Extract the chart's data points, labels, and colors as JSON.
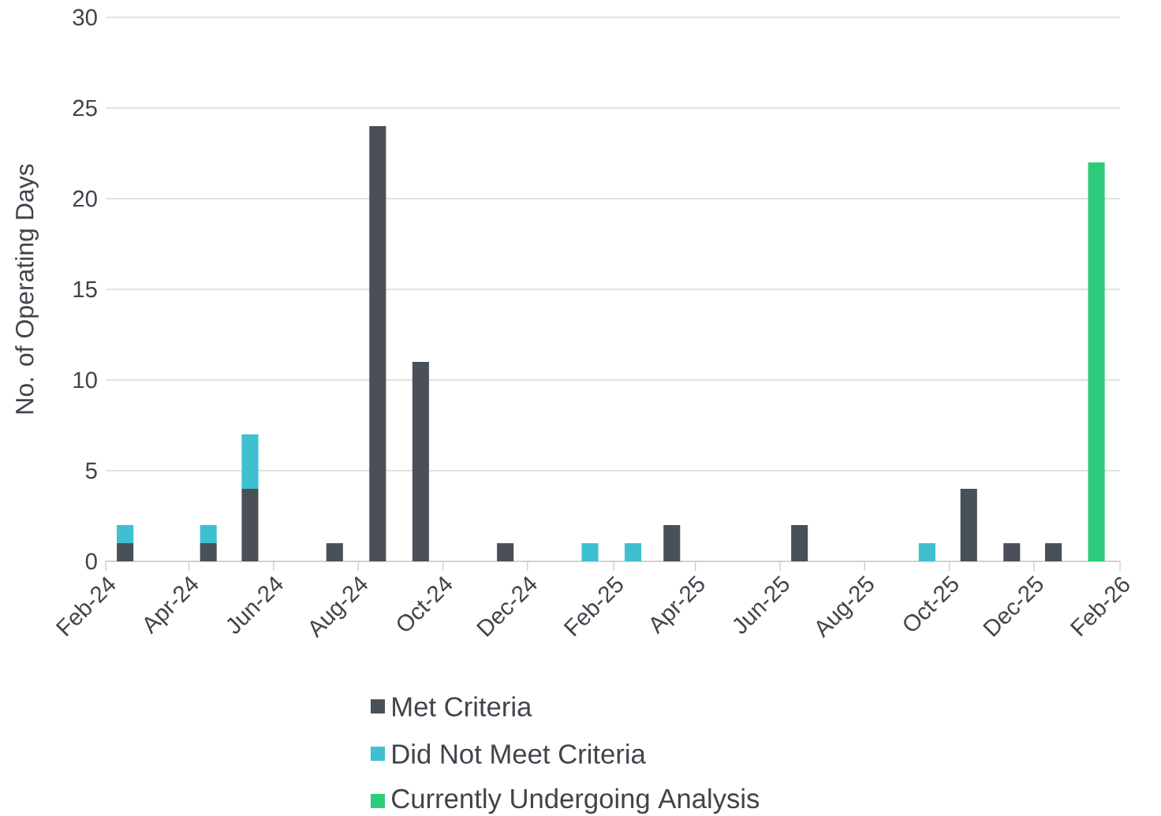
{
  "chart_data": {
    "type": "bar",
    "stacked": true,
    "ylabel": "No. of Operating Days",
    "x": [
      "2024-02-15",
      "2024-04-15",
      "2024-05-15",
      "2024-07-15",
      "2024-08-15",
      "2024-09-15",
      "2024-11-15",
      "2025-01-15",
      "2025-02-15",
      "2025-03-15",
      "2025-06-15",
      "2025-09-15",
      "2025-10-15",
      "2025-11-15",
      "2025-12-15",
      "2026-01-15"
    ],
    "series": [
      {
        "name": "Met Criteria",
        "color": "#4a5058",
        "values": [
          1,
          1,
          4,
          1,
          24,
          11,
          1,
          null,
          null,
          2,
          2,
          null,
          4,
          1,
          1,
          null
        ]
      },
      {
        "name": "Did Not Meet Criteria",
        "color": "#3ec0d0",
        "values": [
          1,
          1,
          3,
          null,
          null,
          null,
          null,
          1,
          1,
          null,
          null,
          1,
          null,
          null,
          null,
          null
        ]
      },
      {
        "name": "Currently Undergoing Analysis",
        "color": "#2ecc7a",
        "values": [
          null,
          null,
          null,
          null,
          null,
          null,
          null,
          null,
          null,
          null,
          null,
          null,
          null,
          null,
          null,
          22
        ]
      }
    ],
    "xlim": [
      "2024-02-01",
      "2026-02-01"
    ],
    "xticks": [
      {
        "value": "2024-02-01",
        "label": "Feb-24"
      },
      {
        "value": "2024-04-01",
        "label": "Apr-24"
      },
      {
        "value": "2024-06-01",
        "label": "Jun-24"
      },
      {
        "value": "2024-08-01",
        "label": "Aug-24"
      },
      {
        "value": "2024-10-01",
        "label": "Oct-24"
      },
      {
        "value": "2024-12-01",
        "label": "Dec-24"
      },
      {
        "value": "2025-02-01",
        "label": "Feb-25"
      },
      {
        "value": "2025-04-01",
        "label": "Apr-25"
      },
      {
        "value": "2025-06-01",
        "label": "Jun-25"
      },
      {
        "value": "2025-08-01",
        "label": "Aug-25"
      },
      {
        "value": "2025-10-01",
        "label": "Oct-25"
      },
      {
        "value": "2025-12-01",
        "label": "Dec-25"
      },
      {
        "value": "2026-02-01",
        "label": "Feb-26"
      }
    ],
    "ylim": [
      0,
      30
    ],
    "yticks": [
      0,
      5,
      10,
      15,
      20,
      25,
      30
    ],
    "grid": "y",
    "legend": "bottom"
  }
}
